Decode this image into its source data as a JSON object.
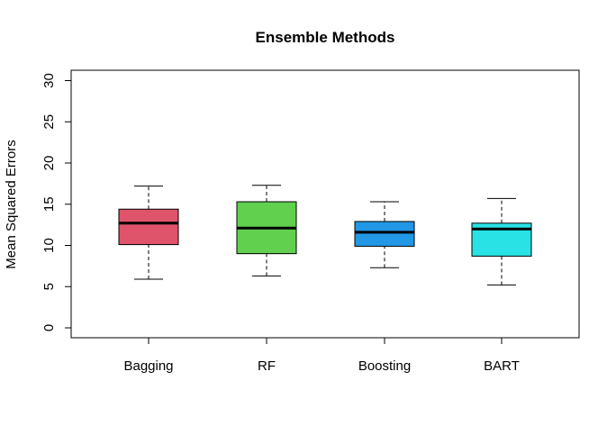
{
  "chart_data": {
    "type": "boxplot",
    "title": "Ensemble Methods",
    "ylabel": "Mean Squared Errors",
    "xlabel": "",
    "ylim": [
      0,
      30
    ],
    "yticks": [
      0,
      5,
      10,
      15,
      20,
      25,
      30
    ],
    "categories": [
      "Bagging",
      "RF",
      "Boosting",
      "BART"
    ],
    "boxes": [
      {
        "name": "Bagging",
        "min": 5.9,
        "q1": 10.1,
        "median": 12.7,
        "q3": 14.4,
        "max": 17.2,
        "color": "#DF536B"
      },
      {
        "name": "RF",
        "min": 6.3,
        "q1": 9.0,
        "median": 12.1,
        "q3": 15.3,
        "max": 17.3,
        "color": "#61D04F"
      },
      {
        "name": "Boosting",
        "min": 7.3,
        "q1": 9.9,
        "median": 11.6,
        "q3": 12.9,
        "max": 15.3,
        "color": "#2297E6"
      },
      {
        "name": "BART",
        "min": 5.2,
        "q1": 8.7,
        "median": 12.0,
        "q3": 12.7,
        "max": 15.7,
        "color": "#28E2E5"
      }
    ],
    "grid": false,
    "legend": "none"
  }
}
